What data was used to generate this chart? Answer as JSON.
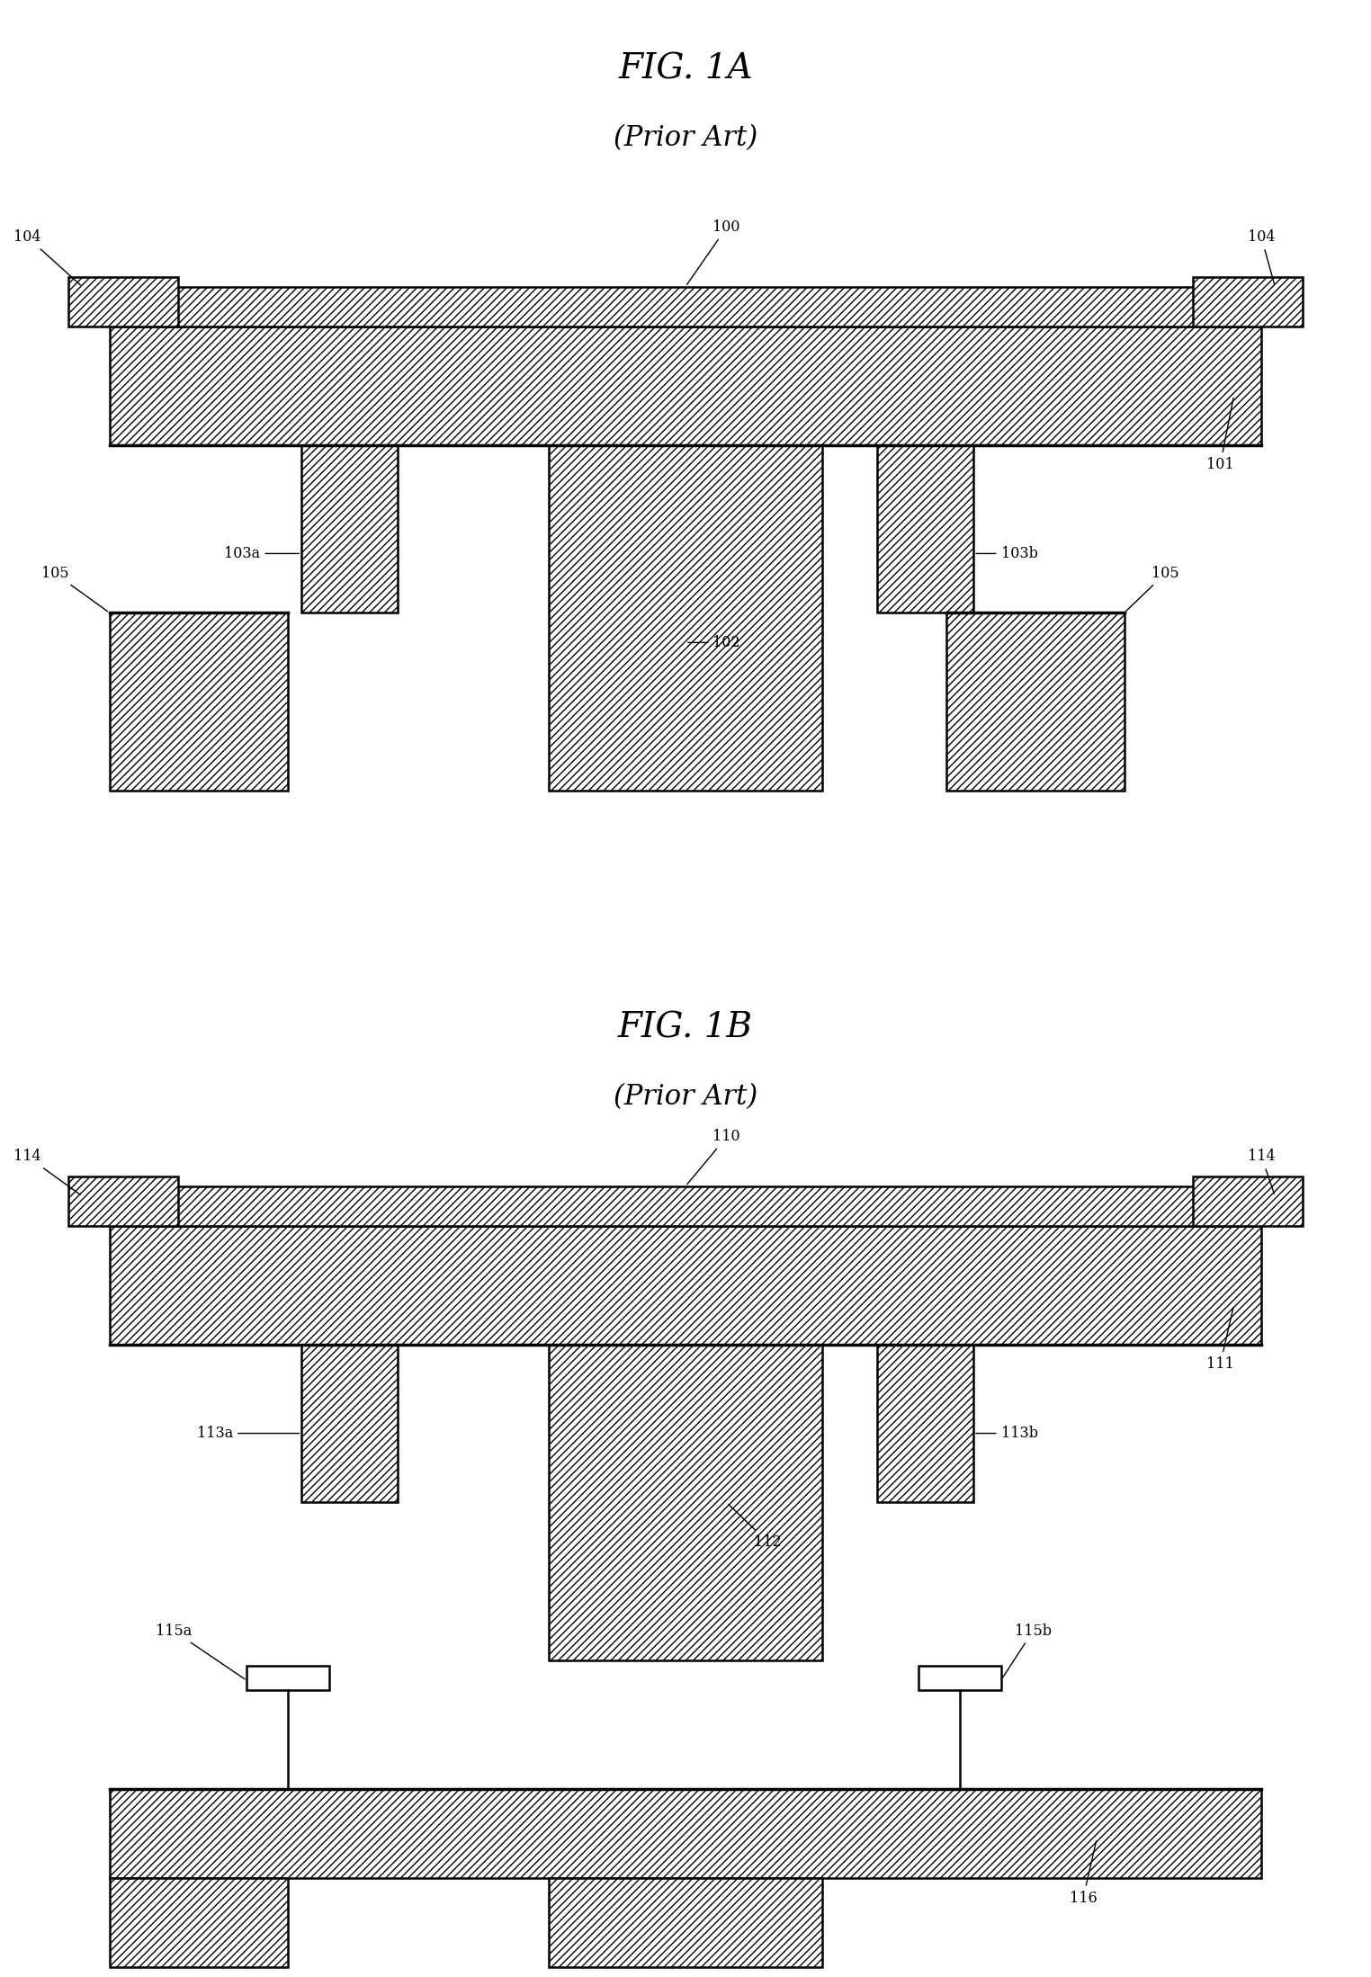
{
  "bg_color": "#ffffff",
  "fig_width": 15.24,
  "fig_height": 21.98,
  "fig1a_title": "FIG. 1A",
  "fig1b_title": "FIG. 1B",
  "prior_art": "(Prior Art)"
}
